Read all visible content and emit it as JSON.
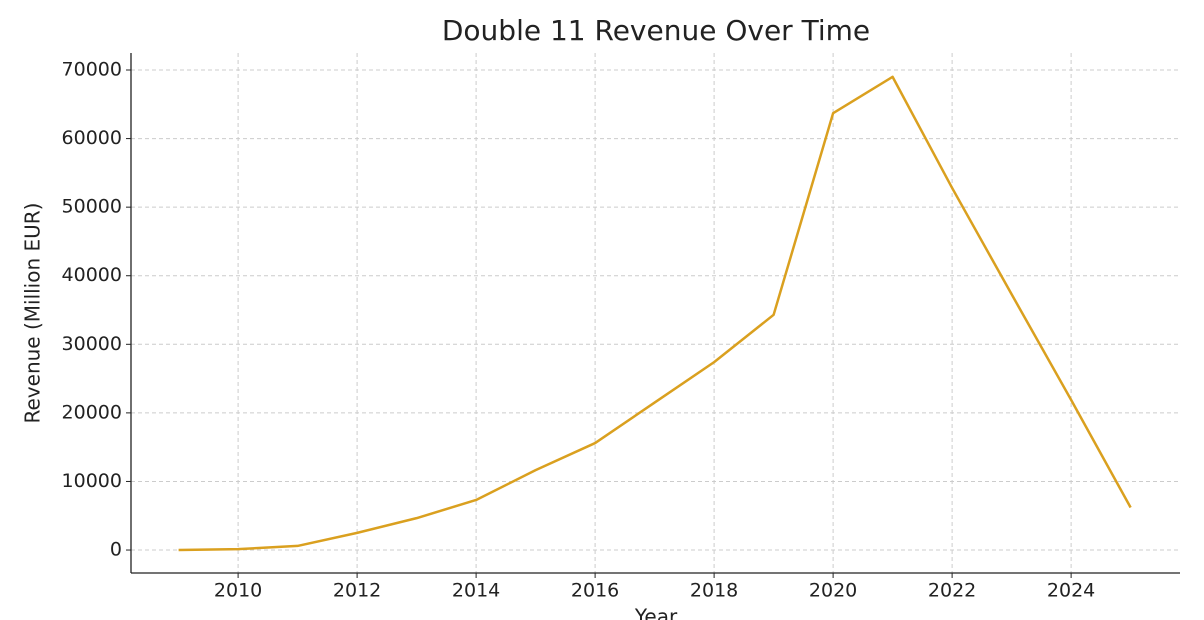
{
  "chart_data": {
    "type": "line",
    "title": "Double 11 Revenue Over Time",
    "x_label": "Year",
    "y_label": "Revenue (Million EUR)",
    "x": [
      2009,
      2010,
      2011,
      2012,
      2013,
      2014,
      2015,
      2016,
      2017,
      2018,
      2019,
      2020,
      2021,
      2022,
      2023,
      2024,
      2025
    ],
    "series": [
      {
        "name": "Revenue",
        "color": "#daa01f",
        "values": [
          0,
          130,
          600,
          2500,
          4650,
          7300,
          11650,
          15600,
          21500,
          27400,
          34300,
          63700,
          69000,
          52800,
          37300,
          21900,
          6200
        ]
      }
    ],
    "xlim": [
      2008.2,
      2025.83
    ],
    "xticks": [
      2010,
      2012,
      2014,
      2016,
      2018,
      2020,
      2022,
      2024
    ],
    "ylim": [
      -3350,
      72480
    ],
    "yticks": [
      0,
      10000,
      20000,
      30000,
      40000,
      50000,
      60000,
      70000
    ],
    "grid": true
  }
}
